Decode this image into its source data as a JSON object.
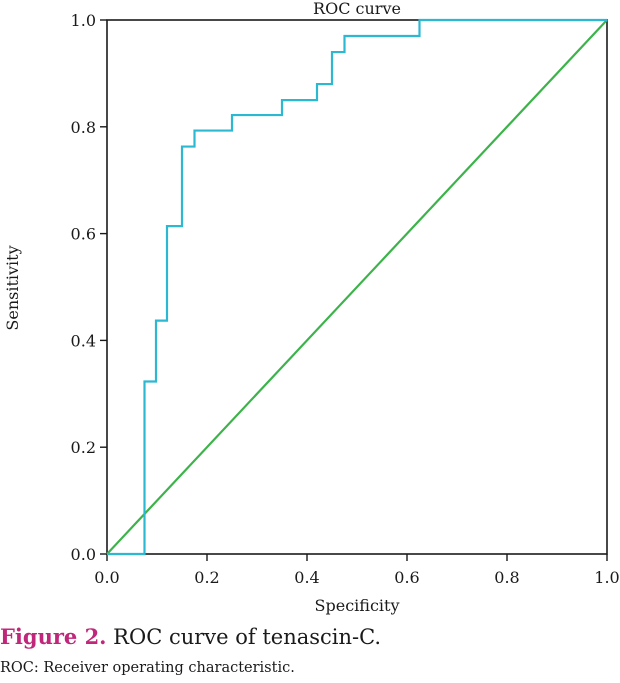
{
  "chart_data": {
    "type": "line",
    "title": "ROC curve",
    "xlabel": "Specificity",
    "ylabel": "Sensitivity",
    "xlim": [
      0,
      1
    ],
    "ylim": [
      0,
      1
    ],
    "x_ticks": [
      "0.0",
      "0.2",
      "0.4",
      "0.6",
      "0.8",
      "1.0"
    ],
    "y_ticks": [
      "0.0",
      "0.2",
      "0.4",
      "0.6",
      "0.8",
      "1.0"
    ],
    "grid": false,
    "series": [
      {
        "name": "ROC",
        "color": "#2cb8d0",
        "x": [
          0,
          0.075,
          0.075,
          0.098,
          0.098,
          0.12,
          0.12,
          0.15,
          0.15,
          0.175,
          0.175,
          0.25,
          0.25,
          0.35,
          0.35,
          0.42,
          0.42,
          0.45,
          0.45,
          0.475,
          0.475,
          0.625,
          0.625,
          1.0
        ],
        "y": [
          0,
          0,
          0.323,
          0.323,
          0.437,
          0.437,
          0.614,
          0.614,
          0.763,
          0.763,
          0.793,
          0.793,
          0.822,
          0.822,
          0.85,
          0.85,
          0.88,
          0.88,
          0.94,
          0.94,
          0.97,
          0.97,
          1.0,
          1.0
        ]
      },
      {
        "name": "Reference",
        "color": "#3cb34a",
        "x": [
          0,
          1
        ],
        "y": [
          0,
          1
        ]
      }
    ]
  },
  "caption": {
    "label": "Figure 2.",
    "text": " ROC curve of tenascin-C.",
    "label_color": "#c0267a"
  },
  "footnote": "ROC: Receiver operating characteristic."
}
